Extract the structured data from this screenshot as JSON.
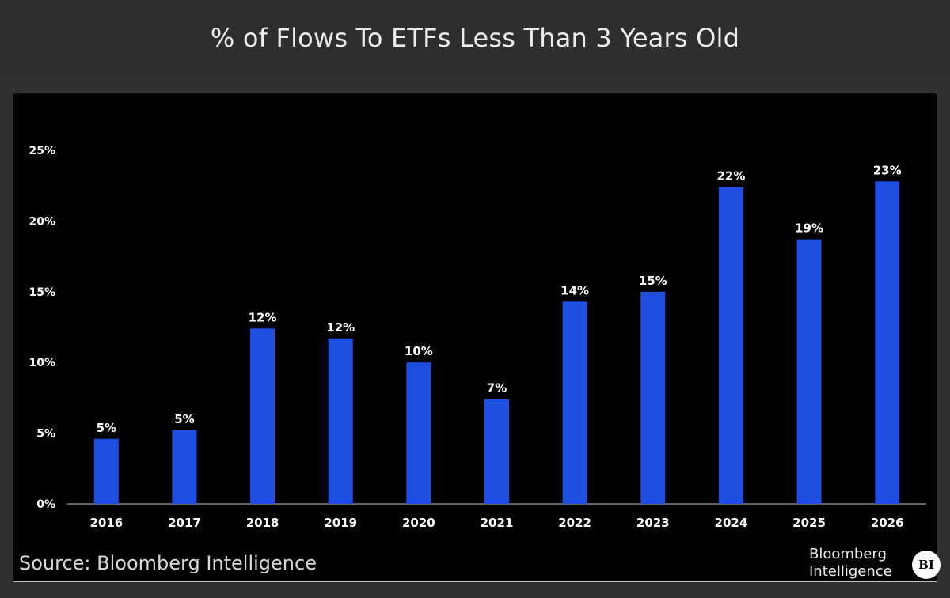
{
  "header": {
    "title": "% of Flows To ETFs Less Than 3 Years Old"
  },
  "footer": {
    "source": "Source: Bloomberg Intelligence",
    "brand_line1": "Bloomberg",
    "brand_line2": "Intelligence",
    "brand_logo": "BI"
  },
  "colors": {
    "bar": "#1f4fe0",
    "background": "#000000",
    "text": "#ffffff",
    "axis": "#c8c8c8"
  },
  "chart_data": {
    "type": "bar",
    "title": "% of Flows To ETFs Less Than 3 Years Old",
    "categories": [
      "2016",
      "2017",
      "2018",
      "2019",
      "2020",
      "2021",
      "2022",
      "2023",
      "2024",
      "2025",
      "2026"
    ],
    "values": [
      4.6,
      5.2,
      12.4,
      11.7,
      10.0,
      7.4,
      14.3,
      15.0,
      22.4,
      18.7,
      22.8
    ],
    "data_labels": [
      "5%",
      "5%",
      "12%",
      "12%",
      "10%",
      "7%",
      "14%",
      "15%",
      "22%",
      "19%",
      "23%"
    ],
    "yticks": [
      "0%",
      "5%",
      "10%",
      "15%",
      "20%",
      "25%"
    ],
    "ytick_values": [
      0,
      5,
      10,
      15,
      20,
      25
    ],
    "ylim": [
      0,
      25
    ],
    "xlabel": "",
    "ylabel": "",
    "grid": false,
    "legend": "none"
  }
}
